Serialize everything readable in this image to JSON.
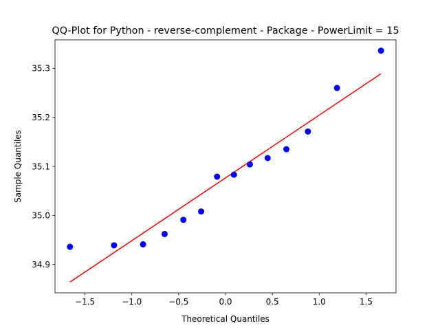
{
  "chart_data": {
    "type": "scatter",
    "title": "QQ-Plot for Python - reverse-complement - Package - PowerLimit = 15",
    "xlabel": "Theoretical Quantiles",
    "ylabel": "Sample Quantiles",
    "xlim": [
      -1.82,
      1.82
    ],
    "ylim": [
      34.842,
      35.358
    ],
    "grid": false,
    "x_ticks": [
      -1.5,
      -1.0,
      -0.5,
      0.0,
      0.5,
      1.0,
      1.5
    ],
    "x_tick_labels": [
      "−1.5",
      "−1.0",
      "−0.5",
      "0.0",
      "0.5",
      "1.0",
      "1.5"
    ],
    "y_ticks": [
      34.9,
      35.0,
      35.1,
      35.2,
      35.3
    ],
    "y_tick_labels": [
      "34.9",
      "35.0",
      "35.1",
      "35.2",
      "35.3"
    ],
    "points": {
      "color": "#0000ff",
      "x": [
        -1.66,
        -1.19,
        -0.88,
        -0.65,
        -0.45,
        -0.26,
        -0.09,
        0.09,
        0.26,
        0.45,
        0.65,
        0.88,
        1.19,
        1.66
      ],
      "y": [
        34.936,
        34.939,
        34.941,
        34.962,
        34.991,
        35.008,
        35.079,
        35.083,
        35.104,
        35.117,
        35.135,
        35.171,
        35.26,
        35.336
      ]
    },
    "fit_line": {
      "color": "#ff0000",
      "x": [
        -1.66,
        1.66
      ],
      "y": [
        34.864,
        35.289
      ]
    }
  }
}
